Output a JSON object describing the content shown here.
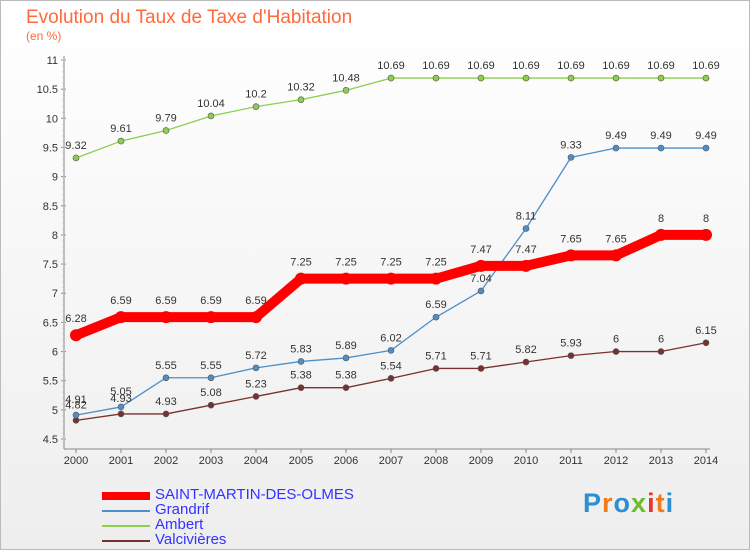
{
  "title": "Evolution du Taux de Taxe d'Habitation",
  "subtitle": "(en %)",
  "logo": {
    "text": "Proxiti",
    "letters": [
      "P",
      "r",
      "o",
      "x",
      "i",
      "t",
      "i"
    ],
    "colors": [
      "#2c8fd1",
      "#f07d1a",
      "#2c8fd1",
      "#6cbd2a",
      "#e8342b",
      "#f07d1a",
      "#2c8fd1"
    ]
  },
  "chart_data": {
    "type": "line",
    "title": "Evolution du Taux de Taxe d'Habitation",
    "ylabel": "(en %)",
    "xlabel": "",
    "ylim": [
      4.5,
      11
    ],
    "yticks": [
      "4.5",
      "5",
      "5.5",
      "6",
      "6.5",
      "7",
      "7.5",
      "8",
      "8.5",
      "9",
      "9.5",
      "10",
      "10.5",
      "11"
    ],
    "categories": [
      "2000",
      "2001",
      "2002",
      "2003",
      "2004",
      "2005",
      "2006",
      "2007",
      "2008",
      "2009",
      "2010",
      "2011",
      "2012",
      "2013",
      "2014"
    ],
    "grid": false,
    "legend_position": "bottom-left",
    "series": [
      {
        "name": "SAINT-MARTIN-DES-OLMES",
        "color": "#ff0000",
        "labelColor": "#333333",
        "values": [
          6.28,
          6.59,
          6.59,
          6.59,
          6.59,
          7.25,
          7.25,
          7.25,
          7.25,
          7.47,
          7.47,
          7.65,
          7.65,
          8,
          8
        ],
        "labels": [
          "6.28",
          "6.59",
          "6.59",
          "6.59",
          "6.59",
          "7.25",
          "7.25",
          "7.25",
          "7.25",
          "7.47",
          "7.47",
          "7.65",
          "7.65",
          "8",
          "8"
        ]
      },
      {
        "name": "Grandrif",
        "color": "#4d8fc6",
        "labelColor": "#333333",
        "values": [
          4.91,
          5.05,
          5.55,
          5.55,
          5.72,
          5.83,
          5.89,
          6.02,
          6.59,
          7.04,
          8.11,
          9.33,
          9.49,
          9.49,
          9.49
        ],
        "labels": [
          "4.91",
          "5.05",
          "5.55",
          "5.55",
          "5.72",
          "5.83",
          "5.89",
          "6.02",
          "6.59",
          "7.04",
          "8.11",
          "9.33",
          "9.49",
          "9.49",
          "9.49"
        ]
      },
      {
        "name": "Ambert",
        "color": "#8dce4f",
        "labelColor": "#333333",
        "values": [
          9.32,
          9.61,
          9.79,
          10.04,
          10.2,
          10.32,
          10.48,
          10.69,
          10.69,
          10.69,
          10.69,
          10.69,
          10.69,
          10.69,
          10.69
        ],
        "labels": [
          "9.32",
          "9.61",
          "9.79",
          "10.04",
          "10.2",
          "10.32",
          "10.48",
          "10.69",
          "10.69",
          "10.69",
          "10.69",
          "10.69",
          "10.69",
          "10.69",
          "10.69"
        ]
      },
      {
        "name": "Valcivières",
        "color": "#7a3030",
        "labelColor": "#333333",
        "values": [
          4.82,
          4.93,
          4.93,
          5.08,
          5.23,
          5.38,
          5.38,
          5.54,
          5.71,
          5.71,
          5.82,
          5.93,
          6,
          6,
          6.15
        ],
        "labels": [
          "4.82",
          "4.93",
          "4.93",
          "5.08",
          "5.23",
          "5.38",
          "5.38",
          "5.54",
          "5.71",
          "5.71",
          "5.82",
          "5.93",
          "6",
          "6",
          "6.15"
        ]
      }
    ]
  }
}
